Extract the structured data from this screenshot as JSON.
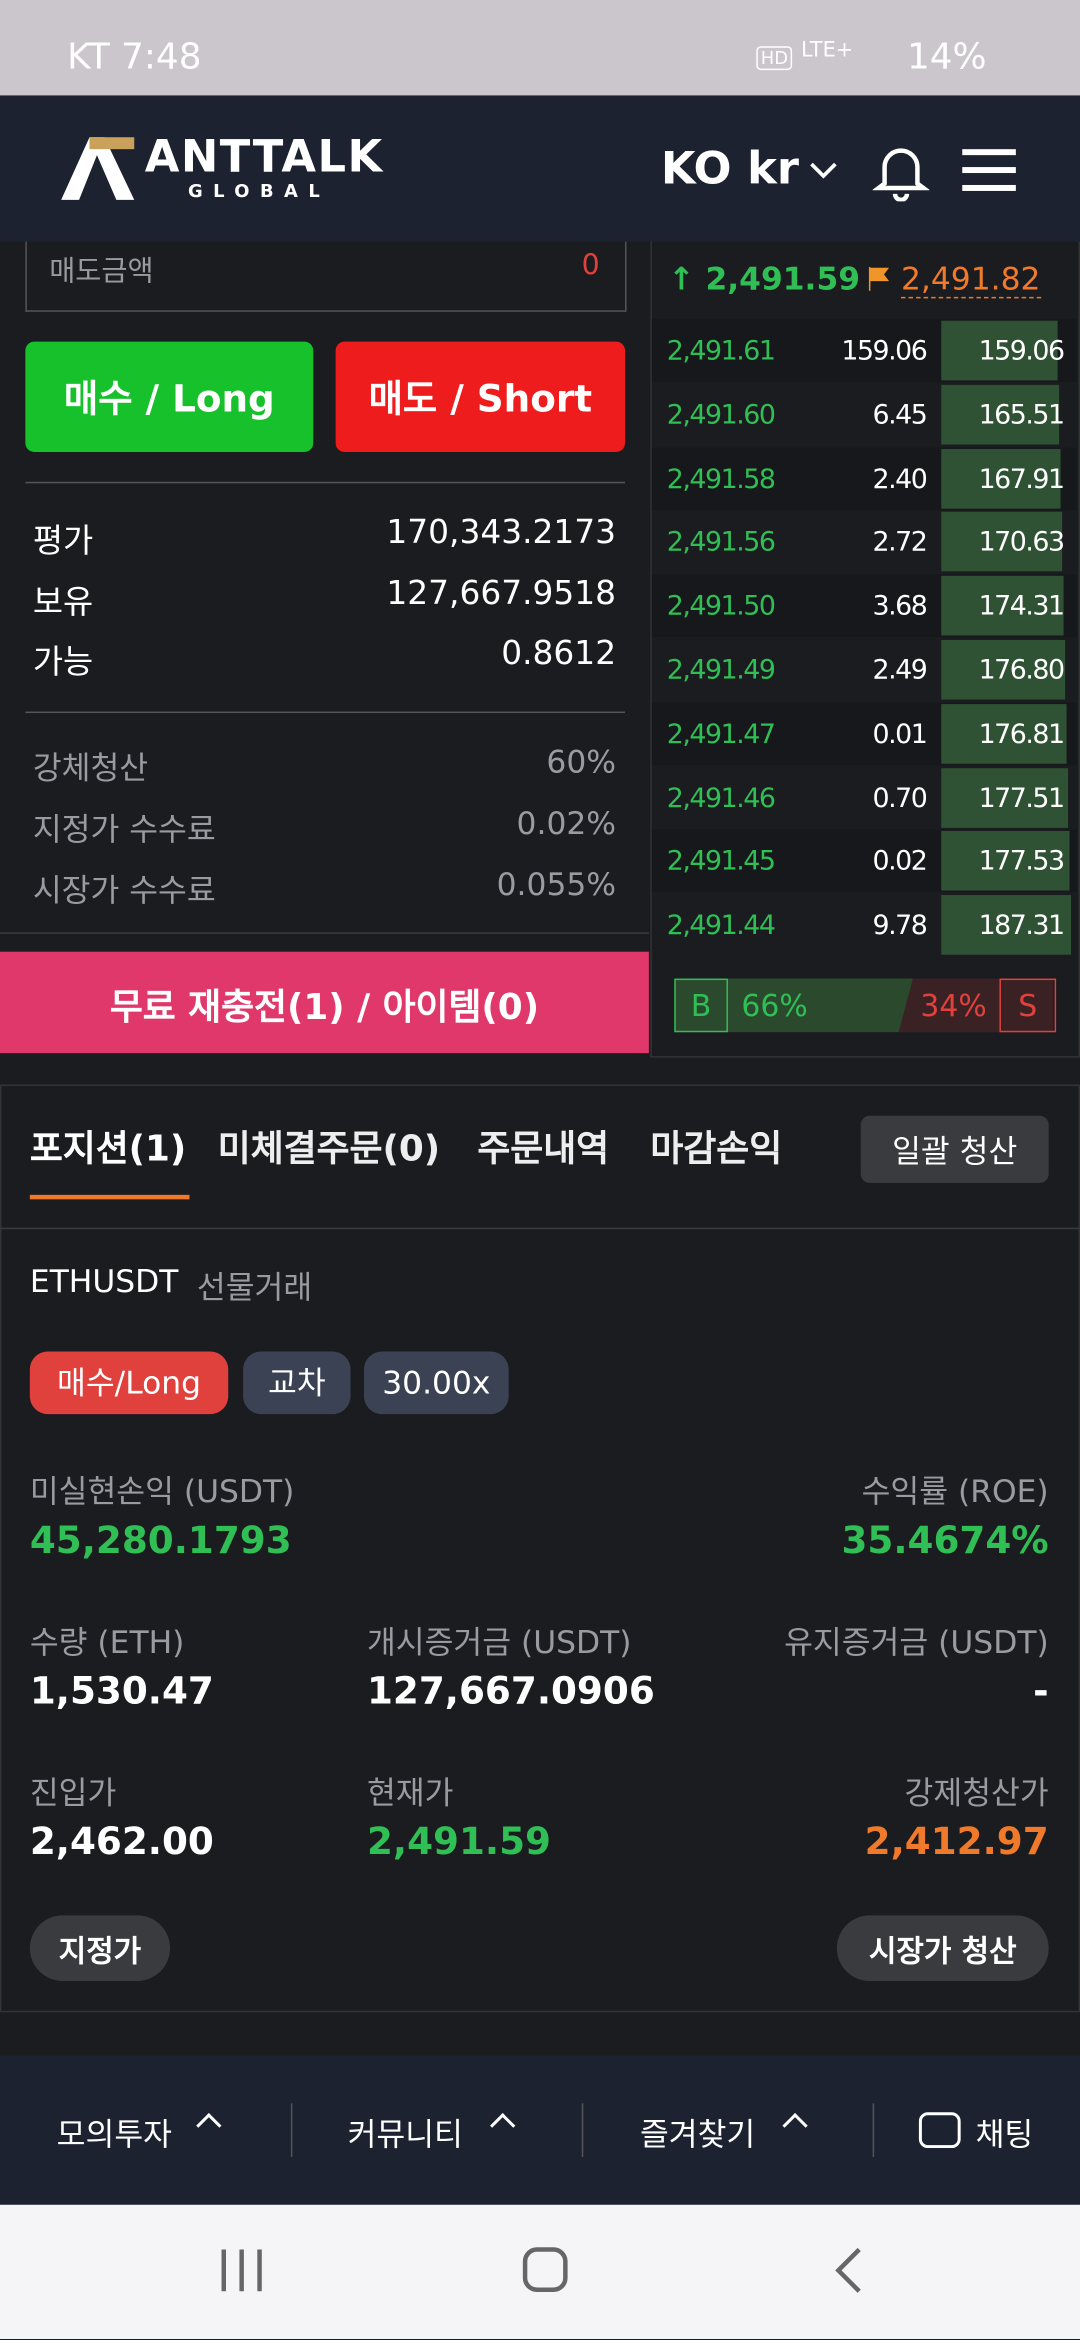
{
  "status_bar": {
    "time": "KT 7:48",
    "hd": "HD",
    "network": "LTE+",
    "battery": "14%"
  },
  "header": {
    "logo": "ANTTALK",
    "logo_sub": "GLOBAL",
    "language": "KO kr"
  },
  "order_form": {
    "sell_amount_label": "매도금액",
    "sell_amount": "0",
    "buy_button": "매수 / Long",
    "sell_button": "매도 / Short",
    "balances": [
      {
        "label": "평가",
        "value": "170,343.2173"
      },
      {
        "label": "보유",
        "value": "127,667.9518"
      },
      {
        "label": "가능",
        "value": "0.8612"
      }
    ],
    "fees": [
      {
        "label": "강체청산",
        "value": "60%"
      },
      {
        "label": "지정가 수수료",
        "value": "0.02%"
      },
      {
        "label": "시장가 수수료",
        "value": "0.055%"
      }
    ]
  },
  "recharge_button": "무료 재충전(1) / 아이템(0)",
  "order_book": {
    "last_price": "2,491.59",
    "mark_price": "2,491.82",
    "rows": [
      [
        "2,491.61",
        "159.06",
        "159.06"
      ],
      [
        "2,491.60",
        "6.45",
        "165.51"
      ],
      [
        "2,491.58",
        "2.40",
        "167.91"
      ],
      [
        "2,491.56",
        "2.72",
        "170.63"
      ],
      [
        "2,491.50",
        "3.68",
        "174.31"
      ],
      [
        "2,491.49",
        "2.49",
        "176.80"
      ],
      [
        "2,491.47",
        "0.01",
        "176.81"
      ],
      [
        "2,491.46",
        "0.70",
        "177.51"
      ],
      [
        "2,491.45",
        "0.02",
        "177.53"
      ],
      [
        "2,491.44",
        "9.78",
        "187.31"
      ]
    ],
    "buy_label": "B",
    "buy_ratio": "66%",
    "sell_ratio": "34%",
    "sell_label": "S"
  },
  "tabs": [
    "포지션(1)",
    "미체결주문(0)",
    "주문내역",
    "마감손익"
  ],
  "close_all": "일괄 청산",
  "position": {
    "symbol": "ETHUSDT",
    "market": "선물거래",
    "tags": [
      "매수/Long",
      "교차",
      "30.00x"
    ],
    "fields": [
      {
        "label": "미실현손익 (USDT)",
        "value": "45,280.1793"
      },
      {
        "label": "수익률 (ROE)",
        "value": "35.4674%"
      },
      {
        "label": "수량 (ETH)",
        "value": "1,530.47"
      },
      {
        "label": "개시증거금 (USDT)",
        "value": "127,667.0906"
      },
      {
        "label": "유지증거금 (USDT)",
        "value": "-"
      },
      {
        "label": "진입가",
        "value": "2,462.00"
      },
      {
        "label": "현재가",
        "value": "2,491.59"
      },
      {
        "label": "강제청산가",
        "value": "2,412.97"
      }
    ],
    "limit_button": "지정가",
    "market_close_button": "시장가 청산"
  },
  "bottom_nav": [
    "모의투자",
    "커뮤니티",
    "즐겨찾기",
    "채팅"
  ]
}
